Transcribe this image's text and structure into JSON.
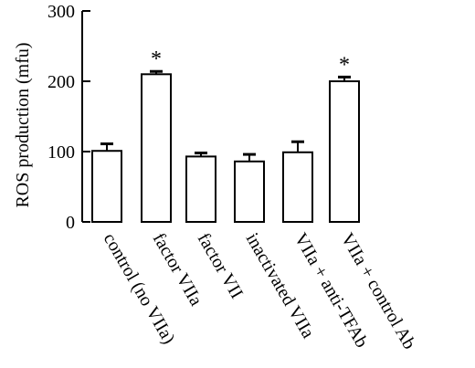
{
  "chart_data": {
    "type": "bar",
    "ylabel": "ROS production (mfu)",
    "ylim": [
      0,
      300
    ],
    "yticks": [
      0,
      100,
      200,
      300
    ],
    "categories": [
      "control (no VIIa)",
      "factor VIIa",
      "factor VII",
      "inactivated VIIa",
      "VIIa + anti-TFAb",
      "VIIa + control Ab"
    ],
    "values": [
      101,
      210,
      93,
      86,
      99,
      200
    ],
    "errors": [
      10,
      4,
      5,
      10,
      15,
      6
    ],
    "annotations": [
      "",
      "*",
      "",
      "",
      "",
      "*"
    ],
    "bar_color": "#ffffff",
    "edge_color": "#000000",
    "grid": false
  }
}
